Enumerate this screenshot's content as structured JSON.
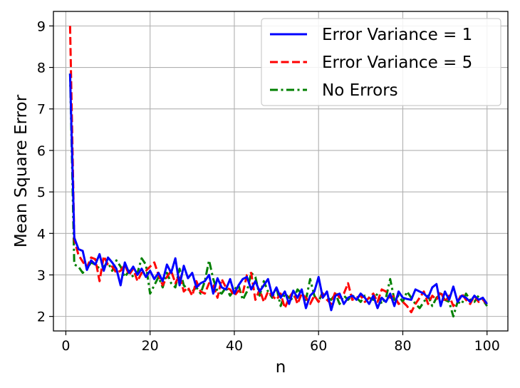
{
  "chart_data": {
    "type": "line",
    "title": "",
    "xlabel": "n",
    "ylabel": "Mean Square Error",
    "xlim": [
      -2.95,
      104.95
    ],
    "ylim": [
      1.65,
      9.35
    ],
    "xticks": [
      0,
      20,
      40,
      60,
      80,
      100
    ],
    "yticks": [
      2,
      3,
      4,
      5,
      6,
      7,
      8,
      9
    ],
    "xtick_labels": [
      "0",
      "20",
      "40",
      "60",
      "80",
      "100"
    ],
    "ytick_labels": [
      "2",
      "3",
      "4",
      "5",
      "6",
      "7",
      "8",
      "9"
    ],
    "grid": true,
    "legend_position": "top-right",
    "x": [
      1,
      2,
      3,
      4,
      5,
      6,
      7,
      8,
      9,
      10,
      11,
      12,
      13,
      14,
      15,
      16,
      17,
      18,
      19,
      20,
      21,
      22,
      23,
      24,
      25,
      26,
      27,
      28,
      29,
      30,
      31,
      32,
      33,
      34,
      35,
      36,
      37,
      38,
      39,
      40,
      41,
      42,
      43,
      44,
      45,
      46,
      47,
      48,
      49,
      50,
      51,
      52,
      53,
      54,
      55,
      56,
      57,
      58,
      59,
      60,
      61,
      62,
      63,
      64,
      65,
      66,
      67,
      68,
      69,
      70,
      71,
      72,
      73,
      74,
      75,
      76,
      77,
      78,
      79,
      80,
      81,
      82,
      83,
      84,
      85,
      86,
      87,
      88,
      89,
      90,
      91,
      92,
      93,
      94,
      95,
      96,
      97,
      98,
      99,
      100
    ],
    "series": [
      {
        "name": "Error Variance = 1",
        "color": "#0000ff",
        "dash": "solid",
        "values": [
          7.85,
          3.9,
          3.62,
          3.58,
          3.12,
          3.35,
          3.25,
          3.5,
          3.1,
          3.42,
          3.3,
          3.15,
          2.75,
          3.3,
          3.05,
          3.2,
          3.0,
          3.15,
          2.95,
          3.1,
          2.9,
          3.05,
          2.85,
          3.25,
          3.05,
          3.4,
          2.75,
          3.22,
          2.92,
          3.05,
          2.7,
          2.8,
          2.85,
          3.0,
          2.55,
          2.92,
          2.7,
          2.65,
          2.9,
          2.55,
          2.75,
          2.9,
          2.95,
          2.65,
          2.85,
          2.6,
          2.75,
          2.9,
          2.5,
          2.7,
          2.45,
          2.6,
          2.3,
          2.62,
          2.45,
          2.65,
          2.2,
          2.5,
          2.6,
          2.95,
          2.45,
          2.6,
          2.15,
          2.5,
          2.55,
          2.3,
          2.45,
          2.5,
          2.4,
          2.55,
          2.45,
          2.3,
          2.5,
          2.2,
          2.45,
          2.35,
          2.55,
          2.25,
          2.6,
          2.45,
          2.42,
          2.4,
          2.65,
          2.6,
          2.55,
          2.45,
          2.7,
          2.78,
          2.25,
          2.6,
          2.4,
          2.72,
          2.35,
          2.5,
          2.45,
          2.35,
          2.5,
          2.4,
          2.45,
          2.3
        ]
      },
      {
        "name": "Error Variance = 5",
        "color": "#ff0000",
        "dash": "dashed",
        "values": [
          9.0,
          3.85,
          3.48,
          3.32,
          3.18,
          3.42,
          3.38,
          2.85,
          3.45,
          3.25,
          3.2,
          3.05,
          3.1,
          3.25,
          3.0,
          3.15,
          2.85,
          3.05,
          3.1,
          3.2,
          3.3,
          3.0,
          2.75,
          2.95,
          3.1,
          2.8,
          3.0,
          2.6,
          2.7,
          2.5,
          2.85,
          2.6,
          2.55,
          2.8,
          2.75,
          2.45,
          2.9,
          2.7,
          2.65,
          2.5,
          2.62,
          2.55,
          3.0,
          3.05,
          2.4,
          2.65,
          2.35,
          2.6,
          2.5,
          2.4,
          2.55,
          2.2,
          2.45,
          2.6,
          2.3,
          2.55,
          2.45,
          2.3,
          2.5,
          2.35,
          2.55,
          2.4,
          2.3,
          2.6,
          2.45,
          2.55,
          2.8,
          2.4,
          2.45,
          2.5,
          2.35,
          2.45,
          2.55,
          2.35,
          2.65,
          2.6,
          2.45,
          2.5,
          2.3,
          2.35,
          2.25,
          2.1,
          2.3,
          2.45,
          2.6,
          2.3,
          2.5,
          2.4,
          2.6,
          2.35,
          2.5,
          2.25,
          2.35,
          2.55,
          2.4,
          2.3,
          2.5,
          2.35,
          2.4,
          2.3
        ]
      },
      {
        "name": "No Errors",
        "color": "#008000",
        "dash": "dashdot",
        "values": [
          7.85,
          3.25,
          3.2,
          3.05,
          3.15,
          3.3,
          3.25,
          3.15,
          3.2,
          3.3,
          3.1,
          3.35,
          3.2,
          2.95,
          3.1,
          2.95,
          3.05,
          3.4,
          3.25,
          2.55,
          2.75,
          2.95,
          2.7,
          3.05,
          2.8,
          2.7,
          3.15,
          2.75,
          2.65,
          2.6,
          2.7,
          2.55,
          2.85,
          3.35,
          2.9,
          2.6,
          2.55,
          2.7,
          2.5,
          2.65,
          2.75,
          2.4,
          2.6,
          3.05,
          2.95,
          2.5,
          2.85,
          2.6,
          2.45,
          2.7,
          2.25,
          2.55,
          2.45,
          2.4,
          2.65,
          2.55,
          2.4,
          2.9,
          2.5,
          2.35,
          2.6,
          2.45,
          2.4,
          2.55,
          2.3,
          2.5,
          2.4,
          2.5,
          2.45,
          2.35,
          2.5,
          2.45,
          2.4,
          2.55,
          2.3,
          2.45,
          2.9,
          2.4,
          2.5,
          2.35,
          2.6,
          2.45,
          2.3,
          2.2,
          2.35,
          2.5,
          2.25,
          2.45,
          2.55,
          2.4,
          2.35,
          2.0,
          2.35,
          2.3,
          2.55,
          2.4,
          2.35,
          2.5,
          2.4,
          2.25
        ]
      }
    ]
  }
}
